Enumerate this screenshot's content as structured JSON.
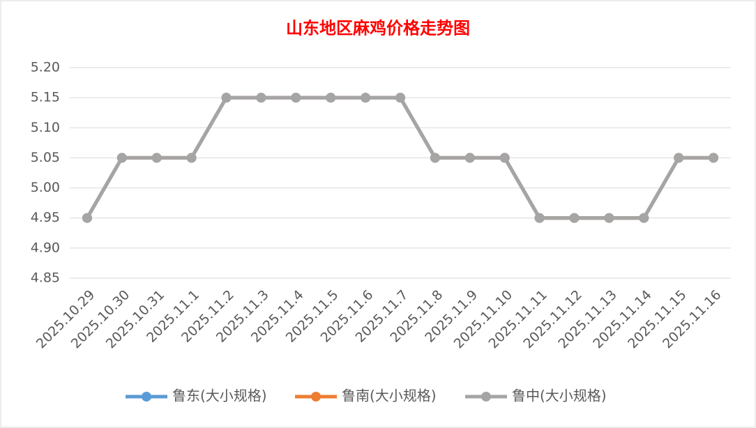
{
  "chart_data": {
    "type": "line",
    "title": "山东地区麻鸡价格走势图",
    "categories": [
      "2025.10.29",
      "2025.10.30",
      "2025.10.31",
      "2025.11.1",
      "2025.11.2",
      "2025.11.3",
      "2025.11.4",
      "2025.11.5",
      "2025.11.6",
      "2025.11.7",
      "2025.11.8",
      "2025.11.9",
      "2025.11.10",
      "2025.11.11",
      "2025.11.12",
      "2025.11.13",
      "2025.11.14",
      "2025.11.15",
      "2025.11.16"
    ],
    "series": [
      {
        "name": "鲁东(大小规格)",
        "color": "#5b9bd5",
        "values": [
          4.95,
          5.05,
          5.05,
          5.05,
          5.15,
          5.15,
          5.15,
          5.15,
          5.15,
          5.15,
          5.05,
          5.05,
          5.05,
          4.95,
          4.95,
          4.95,
          4.95,
          5.05,
          5.05
        ]
      },
      {
        "name": "鲁南(大小规格)",
        "color": "#ed7d31",
        "values": [
          4.95,
          5.05,
          5.05,
          5.05,
          5.15,
          5.15,
          5.15,
          5.15,
          5.15,
          5.15,
          5.05,
          5.05,
          5.05,
          4.95,
          4.95,
          4.95,
          4.95,
          5.05,
          5.05
        ]
      },
      {
        "name": "鲁中(大小规格)",
        "color": "#a5a5a5",
        "values": [
          4.95,
          5.05,
          5.05,
          5.05,
          5.15,
          5.15,
          5.15,
          5.15,
          5.15,
          5.15,
          5.05,
          5.05,
          5.05,
          4.95,
          4.95,
          4.95,
          4.95,
          5.05,
          5.05
        ]
      }
    ],
    "ylim": [
      4.85,
      5.2
    ],
    "yticks": [
      {
        "value": 4.85,
        "label": "4.85"
      },
      {
        "value": 4.9,
        "label": "4.90"
      },
      {
        "value": 4.95,
        "label": "4.95"
      },
      {
        "value": 5.0,
        "label": "5.00"
      },
      {
        "value": 5.05,
        "label": "5.05"
      },
      {
        "value": 5.1,
        "label": "5.10"
      },
      {
        "value": 5.15,
        "label": "5.15"
      },
      {
        "value": 5.2,
        "label": "5.20"
      }
    ],
    "grid": true,
    "legend": "bottom"
  }
}
